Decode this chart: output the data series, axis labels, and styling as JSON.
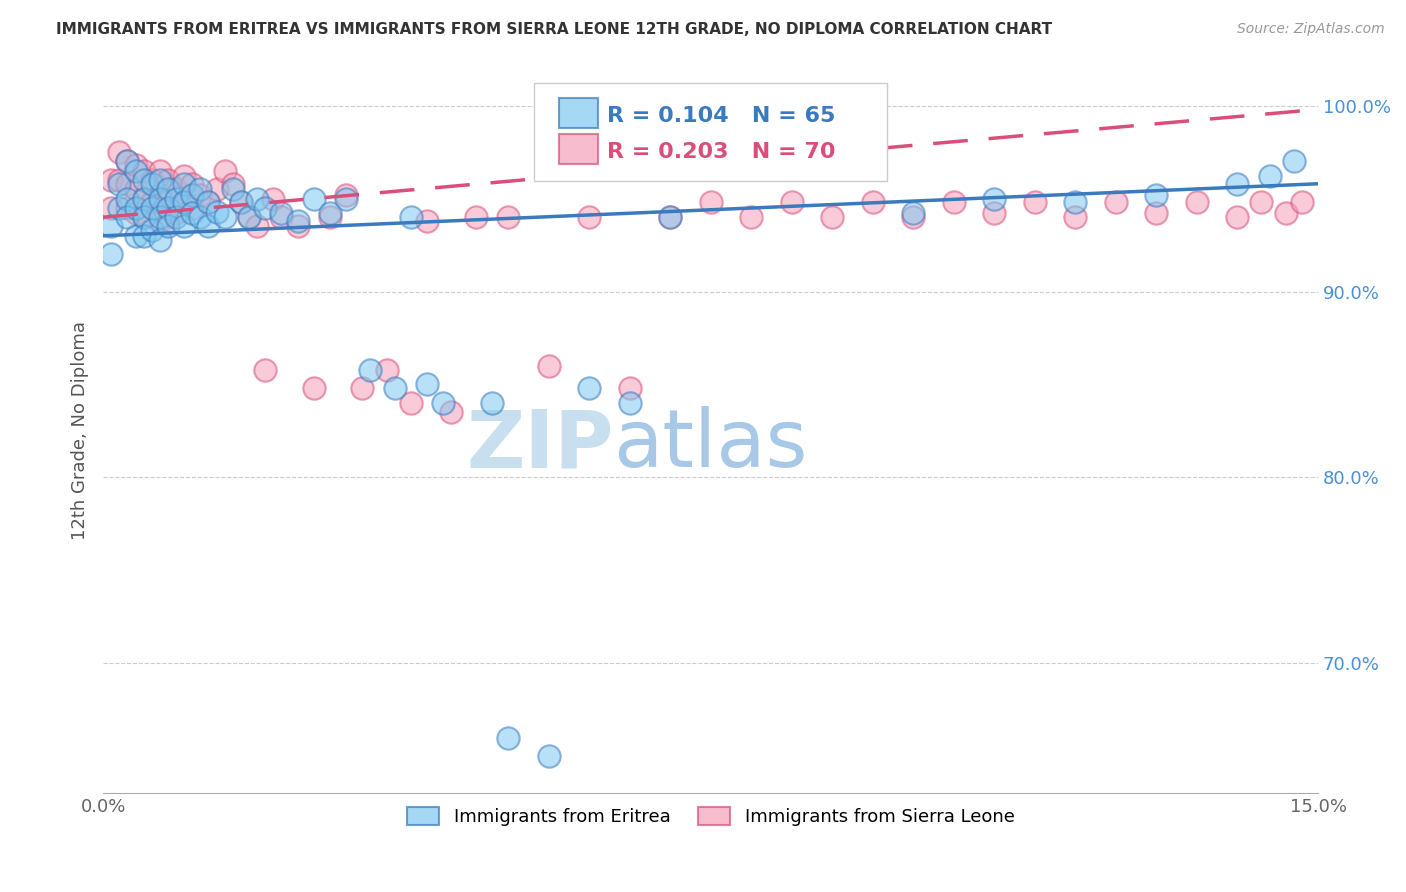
{
  "title": "IMMIGRANTS FROM ERITREA VS IMMIGRANTS FROM SIERRA LEONE 12TH GRADE, NO DIPLOMA CORRELATION CHART",
  "source_text": "Source: ZipAtlas.com",
  "ylabel": "12th Grade, No Diploma",
  "legend_label_blue": "Immigrants from Eritrea",
  "legend_label_pink": "Immigrants from Sierra Leone",
  "R_blue": 0.104,
  "N_blue": 65,
  "R_pink": 0.203,
  "N_pink": 70,
  "xlim": [
    0.0,
    0.15
  ],
  "ylim": [
    0.63,
    1.02
  ],
  "xticks": [
    0.0,
    0.03,
    0.06,
    0.09,
    0.12,
    0.15
  ],
  "xticklabels": [
    "0.0%",
    "",
    "",
    "",
    "",
    "15.0%"
  ],
  "yticks_right": [
    0.7,
    0.8,
    0.9,
    1.0
  ],
  "ytick_right_labels": [
    "70.0%",
    "80.0%",
    "90.0%",
    "100.0%"
  ],
  "color_blue": "#7ec8f0",
  "color_pink": "#f5a0b8",
  "color_blue_line": "#3a7abf",
  "color_pink_line": "#d94f7a",
  "color_axis_label": "#4a90d9",
  "color_title": "#333333",
  "watermark_text": "ZIPatlas",
  "watermark_color": "#daeefa",
  "blue_scatter_x": [
    0.001,
    0.001,
    0.002,
    0.002,
    0.003,
    0.003,
    0.003,
    0.004,
    0.004,
    0.004,
    0.005,
    0.005,
    0.005,
    0.005,
    0.006,
    0.006,
    0.006,
    0.007,
    0.007,
    0.007,
    0.007,
    0.008,
    0.008,
    0.008,
    0.009,
    0.009,
    0.01,
    0.01,
    0.01,
    0.011,
    0.011,
    0.012,
    0.012,
    0.013,
    0.013,
    0.014,
    0.015,
    0.016,
    0.017,
    0.018,
    0.019,
    0.02,
    0.022,
    0.024,
    0.026,
    0.028,
    0.03,
    0.033,
    0.036,
    0.038,
    0.04,
    0.042,
    0.048,
    0.05,
    0.055,
    0.06,
    0.065,
    0.07,
    0.1,
    0.11,
    0.12,
    0.13,
    0.14,
    0.144,
    0.147
  ],
  "blue_scatter_y": [
    0.935,
    0.92,
    0.958,
    0.945,
    0.97,
    0.95,
    0.94,
    0.965,
    0.945,
    0.93,
    0.96,
    0.95,
    0.94,
    0.93,
    0.958,
    0.945,
    0.933,
    0.96,
    0.95,
    0.94,
    0.928,
    0.955,
    0.945,
    0.935,
    0.95,
    0.94,
    0.958,
    0.948,
    0.935,
    0.952,
    0.942,
    0.955,
    0.94,
    0.948,
    0.935,
    0.943,
    0.94,
    0.955,
    0.948,
    0.94,
    0.95,
    0.945,
    0.942,
    0.938,
    0.95,
    0.942,
    0.95,
    0.858,
    0.848,
    0.94,
    0.85,
    0.84,
    0.84,
    0.66,
    0.65,
    0.848,
    0.84,
    0.94,
    0.942,
    0.95,
    0.948,
    0.952,
    0.958,
    0.962,
    0.97
  ],
  "pink_scatter_x": [
    0.001,
    0.001,
    0.002,
    0.002,
    0.003,
    0.003,
    0.003,
    0.004,
    0.004,
    0.004,
    0.005,
    0.005,
    0.005,
    0.006,
    0.006,
    0.007,
    0.007,
    0.007,
    0.008,
    0.008,
    0.008,
    0.009,
    0.009,
    0.01,
    0.01,
    0.011,
    0.011,
    0.012,
    0.013,
    0.014,
    0.015,
    0.016,
    0.017,
    0.018,
    0.019,
    0.02,
    0.021,
    0.022,
    0.024,
    0.026,
    0.028,
    0.03,
    0.032,
    0.035,
    0.038,
    0.04,
    0.043,
    0.046,
    0.05,
    0.055,
    0.06,
    0.065,
    0.07,
    0.075,
    0.08,
    0.085,
    0.09,
    0.095,
    0.1,
    0.105,
    0.11,
    0.115,
    0.12,
    0.125,
    0.13,
    0.135,
    0.14,
    0.143,
    0.146,
    0.148
  ],
  "pink_scatter_y": [
    0.96,
    0.945,
    0.975,
    0.96,
    0.97,
    0.958,
    0.945,
    0.968,
    0.955,
    0.942,
    0.965,
    0.95,
    0.94,
    0.96,
    0.948,
    0.965,
    0.952,
    0.938,
    0.96,
    0.948,
    0.938,
    0.955,
    0.942,
    0.962,
    0.948,
    0.958,
    0.945,
    0.952,
    0.948,
    0.955,
    0.965,
    0.958,
    0.948,
    0.94,
    0.935,
    0.858,
    0.95,
    0.94,
    0.935,
    0.848,
    0.94,
    0.952,
    0.848,
    0.858,
    0.84,
    0.938,
    0.835,
    0.94,
    0.94,
    0.86,
    0.94,
    0.848,
    0.94,
    0.948,
    0.94,
    0.948,
    0.94,
    0.948,
    0.94,
    0.948,
    0.942,
    0.948,
    0.94,
    0.948,
    0.942,
    0.948,
    0.94,
    0.948,
    0.942,
    0.948
  ],
  "blue_line_x": [
    0.0,
    0.15
  ],
  "blue_line_y": [
    0.93,
    0.958
  ],
  "pink_line_x": [
    0.0,
    0.15
  ],
  "pink_line_y": [
    0.94,
    0.998
  ]
}
